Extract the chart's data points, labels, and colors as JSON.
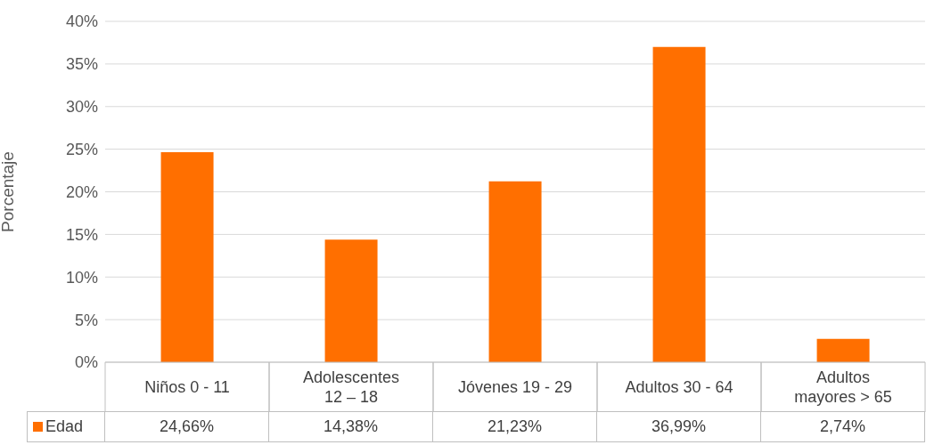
{
  "chart_data": {
    "type": "bar",
    "ylabel": "Porcentaje",
    "categories": [
      "Niños 0 - 11",
      "Adolescentes\n12 – 18",
      "Jóvenes 19 - 29",
      "Adultos 30 - 64",
      "Adultos\nmayores > 65"
    ],
    "series": [
      {
        "name": "Edad",
        "color": "#ff6f00",
        "values": [
          24.66,
          14.38,
          21.23,
          36.99,
          2.74
        ],
        "value_labels": [
          "24,66%",
          "14,38%",
          "21,23%",
          "36,99%",
          "2,74%"
        ]
      }
    ],
    "ylim": [
      0,
      40
    ],
    "yticks": [
      {
        "value": 0,
        "label": "0%"
      },
      {
        "value": 5,
        "label": "5%"
      },
      {
        "value": 10,
        "label": "10%"
      },
      {
        "value": 15,
        "label": "15%"
      },
      {
        "value": 20,
        "label": "20%"
      },
      {
        "value": 25,
        "label": "25%"
      },
      {
        "value": 30,
        "label": "30%"
      },
      {
        "value": 35,
        "label": "35%"
      },
      {
        "value": 40,
        "label": "40%"
      }
    ],
    "grid": "y",
    "legend": "bottom"
  }
}
